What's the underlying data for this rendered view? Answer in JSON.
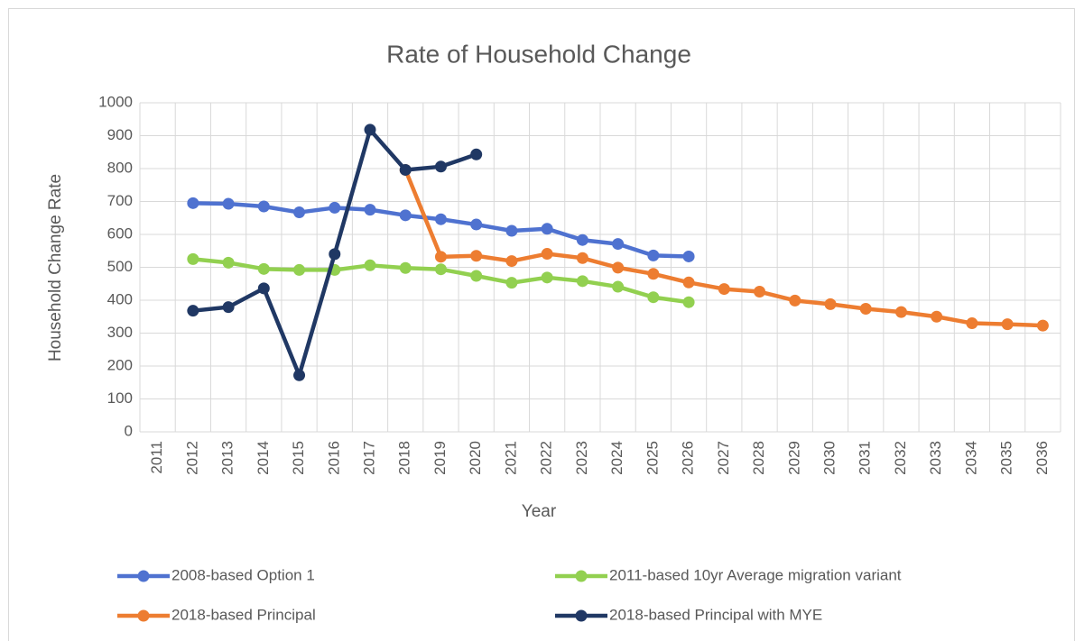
{
  "chart_data": {
    "type": "line",
    "title": "Rate of Household Change",
    "x_label": "Year",
    "y_label": "Household Change Rate",
    "categories": [
      "2011",
      "2012",
      "2013",
      "2014",
      "2015",
      "2016",
      "2017",
      "2018",
      "2019",
      "2020",
      "2021",
      "2022",
      "2023",
      "2024",
      "2025",
      "2026",
      "2027",
      "2028",
      "2029",
      "2030",
      "2031",
      "2032",
      "2033",
      "2034",
      "2035",
      "2036"
    ],
    "series": [
      {
        "name": "2008-based Option 1",
        "color": "#4f72d0",
        "values": [
          null,
          695,
          693,
          685,
          667,
          681,
          675,
          658,
          646,
          630,
          611,
          617,
          583,
          571,
          536,
          533,
          null,
          null,
          null,
          null,
          null,
          null,
          null,
          null,
          null,
          null
        ]
      },
      {
        "name": "2011-based 10yr Average migration variant",
        "color": "#92d050",
        "values": [
          null,
          525,
          514,
          495,
          492,
          492,
          506,
          498,
          494,
          474,
          453,
          469,
          458,
          441,
          409,
          394,
          null,
          null,
          null,
          null,
          null,
          null,
          null,
          null,
          null,
          null
        ]
      },
      {
        "name": "2018-based Principal",
        "color": "#ed7d31",
        "values": [
          null,
          null,
          null,
          null,
          null,
          null,
          null,
          796,
          532,
          535,
          519,
          541,
          528,
          499,
          480,
          454,
          434,
          426,
          399,
          388,
          374,
          364,
          350,
          330,
          327,
          323
        ]
      },
      {
        "name": "2018-based Principal with MYE",
        "color": "#203864",
        "values": [
          null,
          368,
          379,
          436,
          172,
          540,
          918,
          796,
          806,
          843,
          null,
          null,
          null,
          null,
          null,
          null,
          null,
          null,
          null,
          null,
          null,
          null,
          null,
          null,
          null,
          null
        ]
      }
    ],
    "ylim": [
      0,
      1000
    ],
    "yticks": [
      0,
      100,
      200,
      300,
      400,
      500,
      600,
      700,
      800,
      900,
      1000
    ],
    "grid": true,
    "legend": "bottom"
  }
}
